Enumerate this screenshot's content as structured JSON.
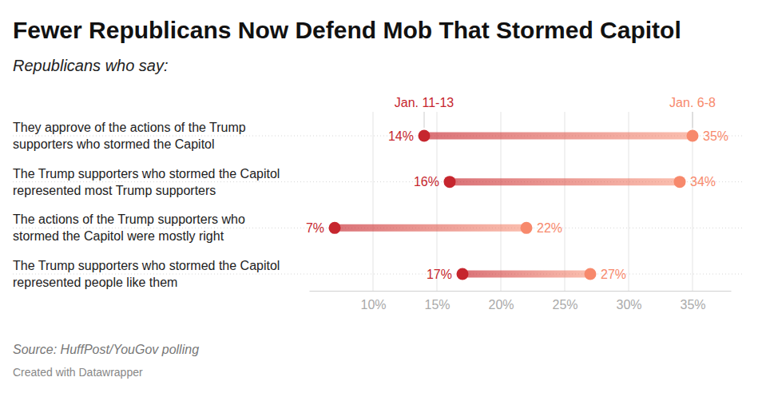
{
  "chart_data": {
    "type": "dumbbell",
    "title": "Fewer Republicans Now Defend Mob That Stormed Capitol",
    "subtitle": "Republicans who say:",
    "source": "Source: HuffPost/YouGov polling",
    "credit": "Created with Datawrapper",
    "categories": [
      "They approve of the actions of the Trump supporters who stormed the Capitol",
      "The Trump supporters who stormed the Capitol represented most Trump supporters",
      "The actions of the Trump supporters who stormed the Capitol were mostly right",
      "The Trump supporters who stormed the Capitol represented people like them"
    ],
    "series": [
      {
        "name": "Jan. 11-13",
        "color": "#c6262e",
        "values": [
          14,
          16,
          7,
          17
        ],
        "value_labels": [
          "14%",
          "16%",
          "7%",
          "17%"
        ]
      },
      {
        "name": "Jan. 6-8",
        "color": "#f7896c",
        "values": [
          35,
          34,
          22,
          27
        ],
        "value_labels": [
          "35%",
          "34%",
          "22%",
          "27%"
        ]
      }
    ],
    "xlim": [
      5,
      38
    ],
    "xticks": [
      {
        "value": 10,
        "label": "10%"
      },
      {
        "value": 15,
        "label": "15%"
      },
      {
        "value": 20,
        "label": "20%"
      },
      {
        "value": 25,
        "label": "25%"
      },
      {
        "value": 30,
        "label": "30%"
      },
      {
        "value": 35,
        "label": "35%"
      }
    ],
    "grid": true,
    "data_labels": true
  }
}
